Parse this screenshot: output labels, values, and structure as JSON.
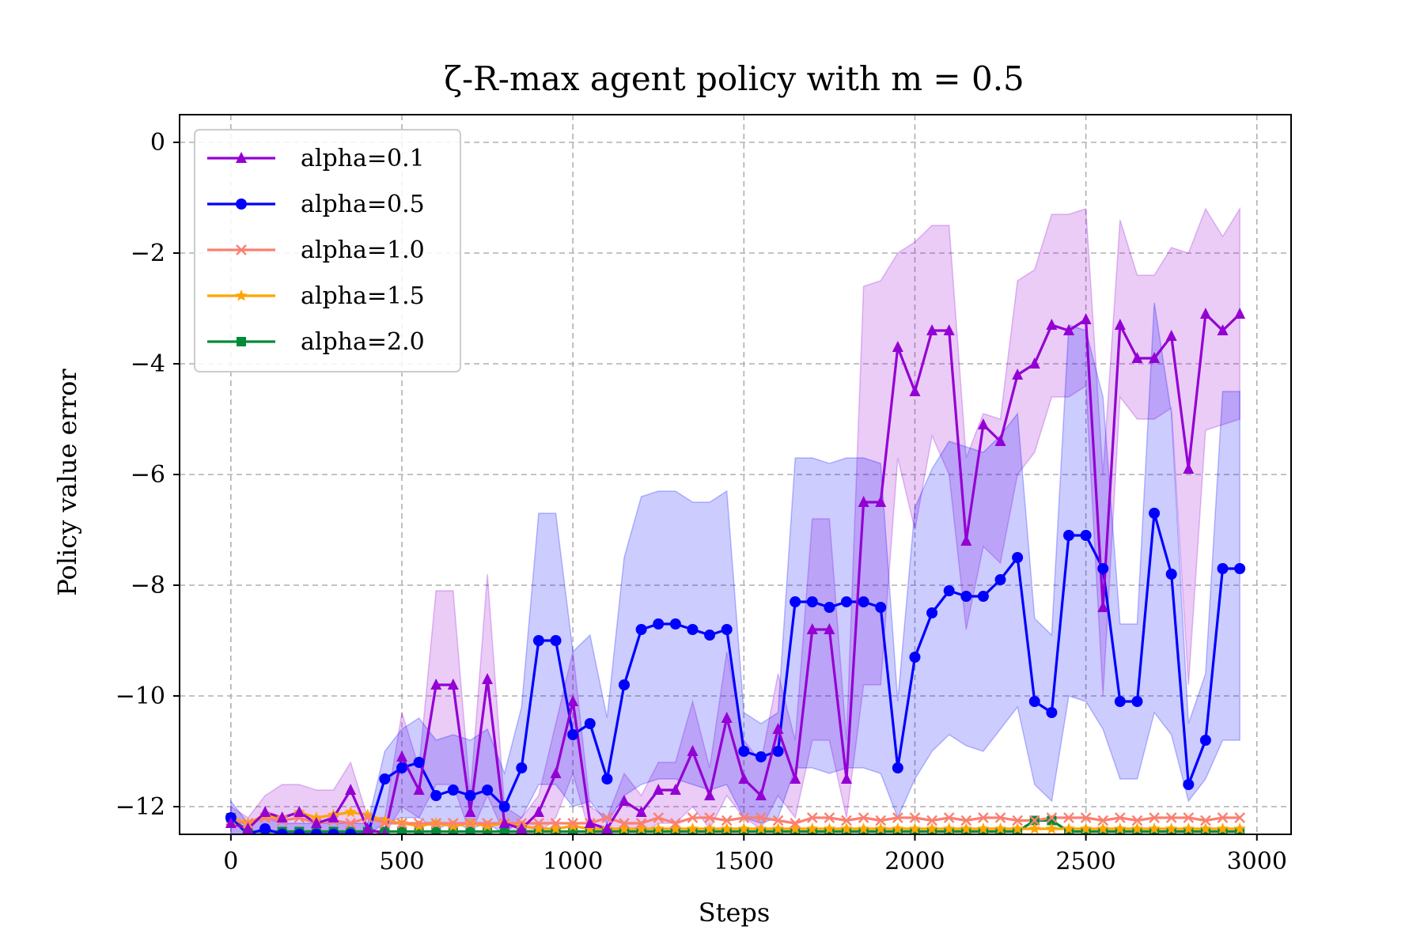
{
  "chart_data": {
    "type": "line",
    "title": "ζ-R-max agent policy with m = 0.5",
    "xlabel": "Steps",
    "ylabel": "Policy value error",
    "xlim": [
      -150,
      3100
    ],
    "ylim": [
      -12.5,
      0.5
    ],
    "xticks": [
      0,
      500,
      1000,
      1500,
      2000,
      2500,
      3000
    ],
    "yticks": [
      0,
      -2,
      -4,
      -6,
      -8,
      -10,
      -12
    ],
    "xtick_labels": [
      "0",
      "500",
      "1000",
      "1500",
      "2000",
      "2500",
      "3000"
    ],
    "ytick_labels": [
      "0",
      "−2",
      "−4",
      "−6",
      "−8",
      "−10",
      "−12"
    ],
    "grid": true,
    "legend_position": "top-left",
    "series": [
      {
        "name": "alpha=0.1",
        "color": "#9400d3",
        "marker": "triangle",
        "x": [
          0,
          50,
          100,
          150,
          200,
          250,
          300,
          350,
          400,
          450,
          500,
          550,
          600,
          650,
          700,
          750,
          800,
          850,
          900,
          950,
          1000,
          1050,
          1100,
          1150,
          1200,
          1250,
          1300,
          1350,
          1400,
          1450,
          1500,
          1550,
          1600,
          1650,
          1700,
          1750,
          1800,
          1850,
          1900,
          1950,
          2000,
          2050,
          2100,
          2150,
          2200,
          2250,
          2300,
          2350,
          2400,
          2450,
          2500,
          2550,
          2600,
          2650,
          2700,
          2750,
          2800,
          2850,
          2900,
          2950
        ],
        "values": [
          -12.3,
          -12.4,
          -12.1,
          -12.2,
          -12.1,
          -12.3,
          -12.2,
          -11.7,
          -12.4,
          -12.5,
          -11.1,
          -11.7,
          -9.8,
          -9.8,
          -12.1,
          -9.7,
          -12.3,
          -12.4,
          -12.1,
          -11.4,
          -10.1,
          -12.3,
          -12.4,
          -11.9,
          -12.1,
          -11.7,
          -11.7,
          -11.0,
          -11.8,
          -10.4,
          -11.5,
          -11.8,
          -10.6,
          -11.5,
          -8.8,
          -8.8,
          -11.5,
          -6.5,
          -6.5,
          -3.7,
          -4.5,
          -3.4,
          -3.4,
          -7.2,
          -5.1,
          -5.4,
          -4.2,
          -4.0,
          -3.3,
          -3.4,
          -3.2,
          -8.4,
          -3.3,
          -3.9,
          -3.9,
          -3.5,
          -5.9,
          -3.1,
          -3.4,
          -3.1
        ],
        "band_lower": [
          -12.5,
          -12.5,
          -12.5,
          -12.5,
          -12.5,
          -12.5,
          -12.5,
          -12.5,
          -12.5,
          -12.5,
          -12.0,
          -12.2,
          -11.6,
          -11.6,
          -12.5,
          -11.8,
          -12.5,
          -12.5,
          -12.5,
          -12.2,
          -11.4,
          -12.5,
          -12.5,
          -12.4,
          -12.5,
          -12.3,
          -12.3,
          -12.0,
          -12.4,
          -11.8,
          -12.2,
          -12.4,
          -11.8,
          -12.2,
          -10.8,
          -10.8,
          -12.2,
          -9.8,
          -9.8,
          -5.7,
          -7.0,
          -5.3,
          -6.0,
          -8.8,
          -7.3,
          -7.6,
          -6.0,
          -5.6,
          -4.6,
          -4.6,
          -4.4,
          -10.0,
          -4.6,
          -5.0,
          -5.0,
          -4.8,
          -9.8,
          -5.2,
          -5.1,
          -5.0
        ],
        "band_upper": [
          -12.0,
          -12.2,
          -11.8,
          -11.6,
          -11.6,
          -11.7,
          -11.7,
          -11.2,
          -12.2,
          -12.2,
          -10.3,
          -11.3,
          -8.1,
          -8.1,
          -11.8,
          -7.8,
          -12.0,
          -12.2,
          -11.8,
          -10.5,
          -9.2,
          -12.0,
          -12.2,
          -11.4,
          -11.8,
          -11.2,
          -11.2,
          -10.1,
          -11.3,
          -9.2,
          -10.8,
          -11.2,
          -9.6,
          -10.8,
          -6.8,
          -6.8,
          -10.8,
          -2.6,
          -2.5,
          -2.0,
          -1.8,
          -1.5,
          -1.5,
          -5.7,
          -4.9,
          -5.0,
          -2.5,
          -2.3,
          -1.3,
          -1.3,
          -1.2,
          -6.0,
          -1.4,
          -2.4,
          -2.4,
          -1.9,
          -2.0,
          -1.2,
          -1.7,
          -1.2
        ]
      },
      {
        "name": "alpha=0.5",
        "color": "#0000ff",
        "marker": "circle",
        "x": [
          0,
          50,
          100,
          150,
          200,
          250,
          300,
          350,
          400,
          450,
          500,
          550,
          600,
          650,
          700,
          750,
          800,
          850,
          900,
          950,
          1000,
          1050,
          1100,
          1150,
          1200,
          1250,
          1300,
          1350,
          1400,
          1450,
          1500,
          1550,
          1600,
          1650,
          1700,
          1750,
          1800,
          1850,
          1900,
          1950,
          2000,
          2050,
          2100,
          2150,
          2200,
          2250,
          2300,
          2350,
          2400,
          2450,
          2500,
          2550,
          2600,
          2650,
          2700,
          2750,
          2800,
          2850,
          2900,
          2950
        ],
        "values": [
          -12.2,
          -12.5,
          -12.4,
          -12.5,
          -12.5,
          -12.5,
          -12.5,
          -12.5,
          -12.5,
          -11.5,
          -11.3,
          -11.2,
          -11.8,
          -11.7,
          -11.8,
          -11.7,
          -12.0,
          -11.3,
          -9.0,
          -9.0,
          -10.7,
          -10.5,
          -11.5,
          -9.8,
          -8.8,
          -8.7,
          -8.7,
          -8.8,
          -8.9,
          -8.8,
          -11.0,
          -11.1,
          -11.0,
          -8.3,
          -8.3,
          -8.4,
          -8.3,
          -8.3,
          -8.4,
          -11.3,
          -9.3,
          -8.5,
          -8.1,
          -8.2,
          -8.2,
          -7.9,
          -7.5,
          -10.1,
          -10.3,
          -7.1,
          -7.1,
          -7.7,
          -10.1,
          -10.1,
          -6.7,
          -7.8,
          -11.6,
          -10.8,
          -7.7,
          -7.7
        ],
        "band_lower": [
          -12.5,
          -12.5,
          -12.5,
          -12.5,
          -12.5,
          -12.5,
          -12.5,
          -12.5,
          -12.5,
          -12.3,
          -12.2,
          -12.2,
          -12.4,
          -12.3,
          -12.4,
          -12.3,
          -12.5,
          -12.2,
          -11.6,
          -11.6,
          -12.0,
          -11.9,
          -12.3,
          -11.8,
          -11.6,
          -11.5,
          -11.5,
          -11.6,
          -11.7,
          -11.6,
          -12.2,
          -12.3,
          -12.2,
          -11.3,
          -11.3,
          -11.4,
          -11.3,
          -11.3,
          -11.4,
          -12.2,
          -11.5,
          -11.0,
          -10.7,
          -10.9,
          -11.0,
          -10.6,
          -10.2,
          -11.6,
          -11.9,
          -10.0,
          -10.1,
          -10.6,
          -11.5,
          -11.5,
          -10.3,
          -10.7,
          -11.9,
          -11.5,
          -10.8,
          -10.8
        ],
        "band_upper": [
          -11.9,
          -12.3,
          -12.2,
          -12.3,
          -12.3,
          -12.3,
          -12.3,
          -12.3,
          -12.3,
          -11.0,
          -10.6,
          -10.4,
          -10.8,
          -10.7,
          -10.8,
          -10.6,
          -11.4,
          -10.2,
          -6.7,
          -6.7,
          -9.2,
          -8.9,
          -10.4,
          -7.5,
          -6.4,
          -6.3,
          -6.3,
          -6.5,
          -6.5,
          -6.3,
          -10.3,
          -10.5,
          -10.3,
          -5.7,
          -5.7,
          -5.8,
          -5.7,
          -5.7,
          -5.8,
          -10.1,
          -6.6,
          -5.9,
          -5.4,
          -5.5,
          -5.6,
          -5.3,
          -4.9,
          -8.6,
          -8.9,
          -3.3,
          -3.4,
          -4.6,
          -8.7,
          -8.7,
          -2.9,
          -4.9,
          -10.5,
          -9.6,
          -4.5,
          -4.5
        ]
      },
      {
        "name": "alpha=1.0",
        "color": "#fa8072",
        "marker": "x",
        "x": [
          0,
          50,
          100,
          150,
          200,
          250,
          300,
          350,
          400,
          450,
          500,
          550,
          600,
          650,
          700,
          750,
          800,
          850,
          900,
          950,
          1000,
          1050,
          1100,
          1150,
          1200,
          1250,
          1300,
          1350,
          1400,
          1450,
          1500,
          1550,
          1600,
          1650,
          1700,
          1750,
          1800,
          1850,
          1900,
          1950,
          2000,
          2050,
          2100,
          2150,
          2200,
          2250,
          2300,
          2350,
          2400,
          2450,
          2500,
          2550,
          2600,
          2650,
          2700,
          2750,
          2800,
          2850,
          2900,
          2950
        ],
        "values": [
          -12.25,
          -12.3,
          -12.2,
          -12.25,
          -12.2,
          -12.3,
          -12.25,
          -12.3,
          -12.2,
          -12.3,
          -12.3,
          -12.3,
          -12.3,
          -12.3,
          -12.3,
          -12.3,
          -12.3,
          -12.3,
          -12.3,
          -12.3,
          -12.3,
          -12.3,
          -12.2,
          -12.3,
          -12.3,
          -12.2,
          -12.3,
          -12.2,
          -12.2,
          -12.25,
          -12.2,
          -12.2,
          -12.25,
          -12.3,
          -12.2,
          -12.2,
          -12.25,
          -12.2,
          -12.25,
          -12.2,
          -12.2,
          -12.25,
          -12.2,
          -12.25,
          -12.2,
          -12.2,
          -12.25,
          -12.25,
          -12.2,
          -12.2,
          -12.2,
          -12.25,
          -12.2,
          -12.25,
          -12.2,
          -12.2,
          -12.2,
          -12.25,
          -12.2,
          -12.2
        ],
        "band_lower": [],
        "band_upper": []
      },
      {
        "name": "alpha=1.5",
        "color": "#ffa500",
        "marker": "star",
        "x": [
          0,
          50,
          100,
          150,
          200,
          250,
          300,
          350,
          400,
          450,
          500,
          550,
          600,
          650,
          700,
          750,
          800,
          850,
          900,
          950,
          1000,
          1050,
          1100,
          1150,
          1200,
          1250,
          1300,
          1350,
          1400,
          1450,
          1500,
          1550,
          1600,
          1650,
          1700,
          1750,
          1800,
          1850,
          1900,
          1950,
          2000,
          2050,
          2100,
          2150,
          2200,
          2250,
          2300,
          2350,
          2400,
          2450,
          2500,
          2550,
          2600,
          2650,
          2700,
          2750,
          2800,
          2850,
          2900,
          2950
        ],
        "values": [
          -12.2,
          -12.3,
          -12.15,
          -12.2,
          -12.1,
          -12.2,
          -12.15,
          -12.1,
          -12.15,
          -12.25,
          -12.3,
          -12.35,
          -12.3,
          -12.35,
          -12.3,
          -12.35,
          -12.3,
          -12.35,
          -12.4,
          -12.4,
          -12.35,
          -12.4,
          -12.4,
          -12.4,
          -12.4,
          -12.4,
          -12.4,
          -12.4,
          -12.4,
          -12.4,
          -12.4,
          -12.4,
          -12.4,
          -12.4,
          -12.4,
          -12.4,
          -12.4,
          -12.4,
          -12.4,
          -12.4,
          -12.4,
          -12.4,
          -12.4,
          -12.4,
          -12.4,
          -12.4,
          -12.4,
          -12.4,
          -12.4,
          -12.4,
          -12.4,
          -12.4,
          -12.4,
          -12.4,
          -12.4,
          -12.4,
          -12.4,
          -12.4,
          -12.4,
          -12.4
        ],
        "band_lower": [],
        "band_upper": []
      },
      {
        "name": "alpha=2.0",
        "color": "#008b3a",
        "marker": "square",
        "x": [
          0,
          50,
          100,
          150,
          200,
          250,
          300,
          350,
          400,
          450,
          500,
          550,
          600,
          650,
          700,
          750,
          800,
          850,
          900,
          950,
          1000,
          1050,
          1100,
          1150,
          1200,
          1250,
          1300,
          1350,
          1400,
          1450,
          1500,
          1550,
          1600,
          1650,
          1700,
          1750,
          1800,
          1850,
          1900,
          1950,
          2000,
          2050,
          2100,
          2150,
          2200,
          2250,
          2300,
          2350,
          2400,
          2450,
          2500,
          2550,
          2600,
          2650,
          2700,
          2750,
          2800,
          2850,
          2900,
          2950
        ],
        "values": [
          -12.2,
          -12.45,
          -12.45,
          -12.45,
          -12.45,
          -12.45,
          -12.45,
          -12.45,
          -12.45,
          -12.45,
          -12.45,
          -12.45,
          -12.45,
          -12.45,
          -12.45,
          -12.45,
          -12.45,
          -12.45,
          -12.45,
          -12.45,
          -12.45,
          -12.45,
          -12.45,
          -12.45,
          -12.45,
          -12.45,
          -12.45,
          -12.45,
          -12.45,
          -12.45,
          -12.45,
          -12.45,
          -12.45,
          -12.45,
          -12.45,
          -12.45,
          -12.45,
          -12.45,
          -12.45,
          -12.45,
          -12.45,
          -12.45,
          -12.45,
          -12.45,
          -12.45,
          -12.45,
          -12.45,
          -12.25,
          -12.25,
          -12.45,
          -12.45,
          -12.45,
          -12.45,
          -12.45,
          -12.45,
          -12.45,
          -12.45,
          -12.45,
          -12.45,
          -12.45
        ],
        "band_lower": [],
        "band_upper": []
      }
    ]
  }
}
